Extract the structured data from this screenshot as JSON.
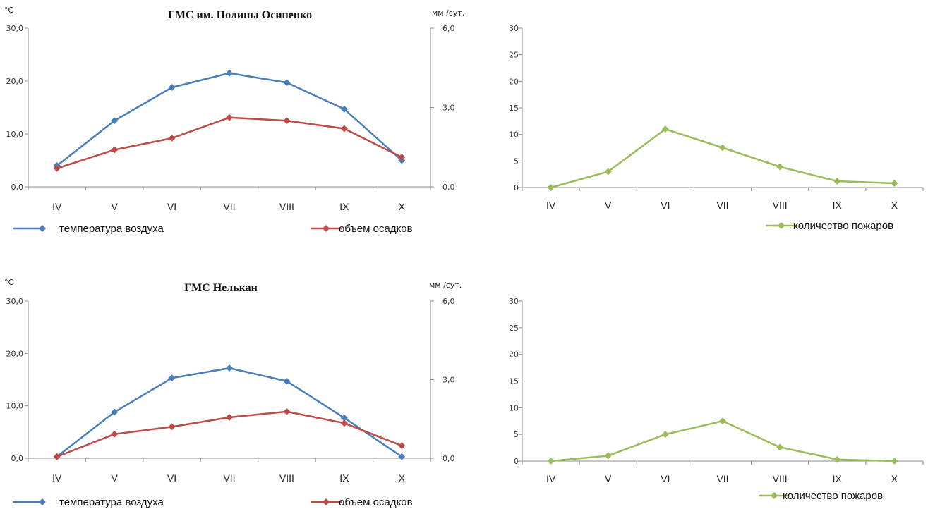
{
  "chart_data": [
    {
      "id": "temp-precip-osipenko",
      "type": "line",
      "title": "ГМС им. Полины Осипенко",
      "left_unit": "°С",
      "right_unit": "мм /сут.",
      "categories": [
        "IV",
        "V",
        "VI",
        "VII",
        "VIII",
        "IX",
        "X"
      ],
      "left_ticks": [
        "0,0",
        "10,0",
        "20,0",
        "30,0"
      ],
      "right_ticks": [
        "0,0",
        "3,0",
        "6,0"
      ],
      "ylim_left": [
        0,
        30
      ],
      "ylim_right": [
        0,
        6
      ],
      "series": [
        {
          "name": "температура воздуха",
          "axis": "left",
          "color": "#4a7ebb",
          "values": [
            4.0,
            12.5,
            18.8,
            21.5,
            19.7,
            14.7,
            5.0
          ]
        },
        {
          "name": "объем осадков",
          "axis": "right",
          "color": "#be4b48",
          "values": [
            0.7,
            1.4,
            1.84,
            2.62,
            2.5,
            2.2,
            1.12
          ]
        }
      ]
    },
    {
      "id": "fires-osipenko",
      "type": "line",
      "categories": [
        "IV",
        "V",
        "VI",
        "VII",
        "VIII",
        "IX",
        "X"
      ],
      "left_ticks": [
        "0",
        "5",
        "10",
        "15",
        "20",
        "25",
        "30"
      ],
      "ylim": [
        0,
        30
      ],
      "series": [
        {
          "name": "количество пожаров",
          "axis": "left",
          "color": "#9bbb59",
          "values": [
            0,
            3,
            11,
            7.5,
            3.9,
            1.2,
            0.8
          ]
        }
      ]
    },
    {
      "id": "temp-precip-nelkan",
      "type": "line",
      "title": "ГМС Нелькан",
      "left_unit": "°С",
      "right_unit": "мм /сут.",
      "categories": [
        "IV",
        "V",
        "VI",
        "VII",
        "VIII",
        "IX",
        "X"
      ],
      "left_ticks": [
        "0,0",
        "10,0",
        "20,0",
        "30,0"
      ],
      "right_ticks": [
        "0,0",
        "3,0",
        "6,0"
      ],
      "ylim_left": [
        0,
        30
      ],
      "ylim_right": [
        0,
        6
      ],
      "series": [
        {
          "name": "температура воздуха",
          "axis": "left",
          "color": "#4a7ebb",
          "values": [
            0.3,
            8.8,
            15.3,
            17.2,
            14.7,
            7.7,
            0.3
          ]
        },
        {
          "name": "объем осадков",
          "axis": "right",
          "color": "#be4b48",
          "values": [
            0.06,
            0.92,
            1.2,
            1.56,
            1.78,
            1.34,
            0.48
          ]
        }
      ]
    },
    {
      "id": "fires-nelkan",
      "type": "line",
      "categories": [
        "IV",
        "V",
        "VI",
        "VII",
        "VIII",
        "IX",
        "X"
      ],
      "left_ticks": [
        "0",
        "5",
        "10",
        "15",
        "20",
        "25",
        "30"
      ],
      "ylim": [
        0,
        30
      ],
      "series": [
        {
          "name": "количество пожаров",
          "axis": "left",
          "color": "#9bbb59",
          "values": [
            0,
            1,
            5,
            7.5,
            2.6,
            0.3,
            0
          ]
        }
      ]
    }
  ]
}
